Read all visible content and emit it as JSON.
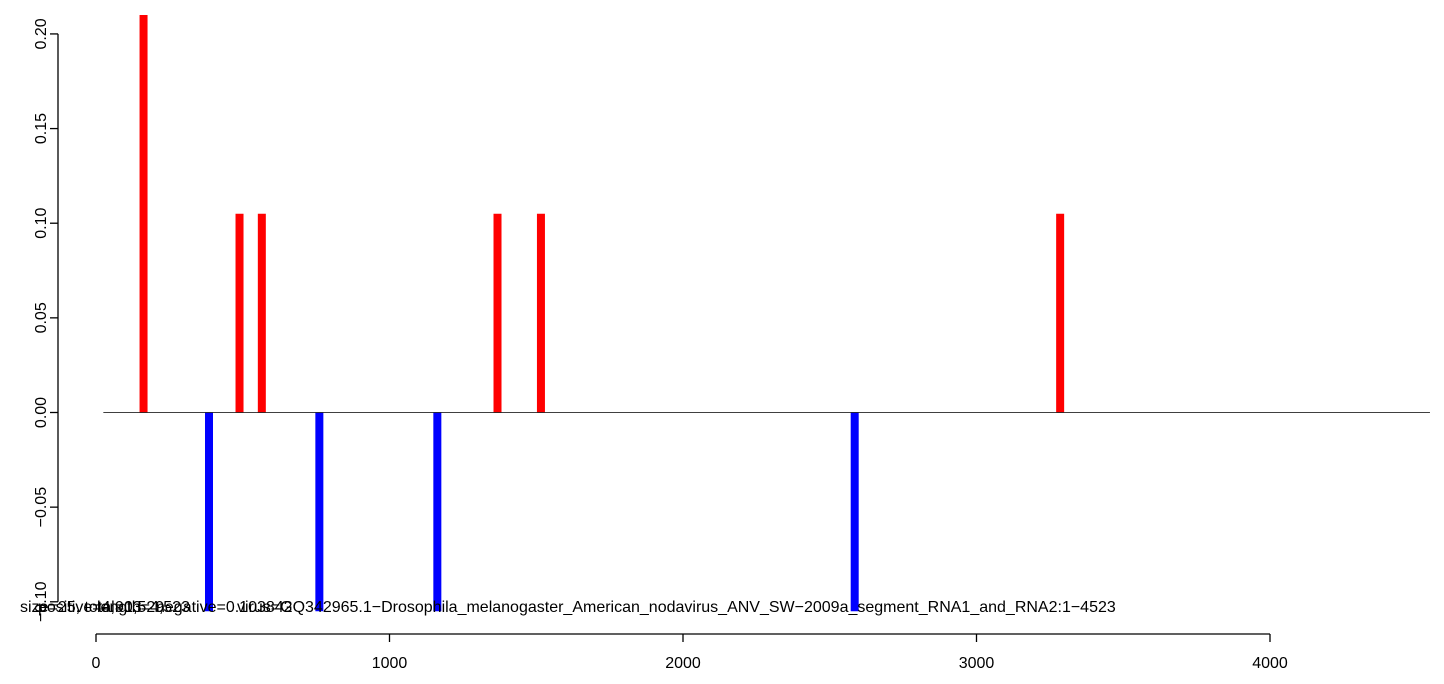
{
  "chart_data": {
    "type": "bar",
    "title": "",
    "xlabel": "",
    "ylabel": "",
    "xlim": [
      0,
      4000
    ],
    "ylim": [
      -0.105,
      0.21
    ],
    "x_ticks": [
      {
        "value": 0,
        "label": "0"
      },
      {
        "value": 1000,
        "label": "1000"
      },
      {
        "value": 2000,
        "label": "2000"
      },
      {
        "value": 3000,
        "label": "3000"
      },
      {
        "value": 4000,
        "label": "4000"
      }
    ],
    "y_ticks": [
      {
        "value": -0.1,
        "label": "−0.10"
      },
      {
        "value": -0.05,
        "label": "−0.05"
      },
      {
        "value": 0.0,
        "label": "0.00"
      },
      {
        "value": 0.05,
        "label": "0.05"
      },
      {
        "value": 0.1,
        "label": "0.10"
      },
      {
        "value": 0.15,
        "label": "0.15"
      },
      {
        "value": 0.2,
        "label": "0.20"
      }
    ],
    "baseline": {
      "from": 25,
      "to": 4545,
      "y": 0
    },
    "series": [
      {
        "strand": "positive",
        "color": "#ff0000",
        "points": [
          {
            "x": 162,
            "y": 0.21
          },
          {
            "x": 489,
            "y": 0.105
          },
          {
            "x": 565,
            "y": 0.105
          },
          {
            "x": 1368,
            "y": 0.105
          },
          {
            "x": 1516,
            "y": 0.105
          },
          {
            "x": 3285,
            "y": 0.105
          }
        ]
      },
      {
        "strand": "negative",
        "color": "#0000ff",
        "points": [
          {
            "x": 385,
            "y": -0.105
          },
          {
            "x": 761,
            "y": -0.105
          },
          {
            "x": 1163,
            "y": -0.105
          },
          {
            "x": 2585,
            "y": -0.105
          }
        ]
      }
    ],
    "annotations": [
      "size=25, total=1,529",
      "positive=4,903",
      "length=4,523",
      "negative=0.103842",
      "virus=GQ342965.1−Drosophila_melanogaster_American_nodavirus_ANV_SW−2009a_segment_RNA1_and_RNA2:1−4523"
    ]
  }
}
